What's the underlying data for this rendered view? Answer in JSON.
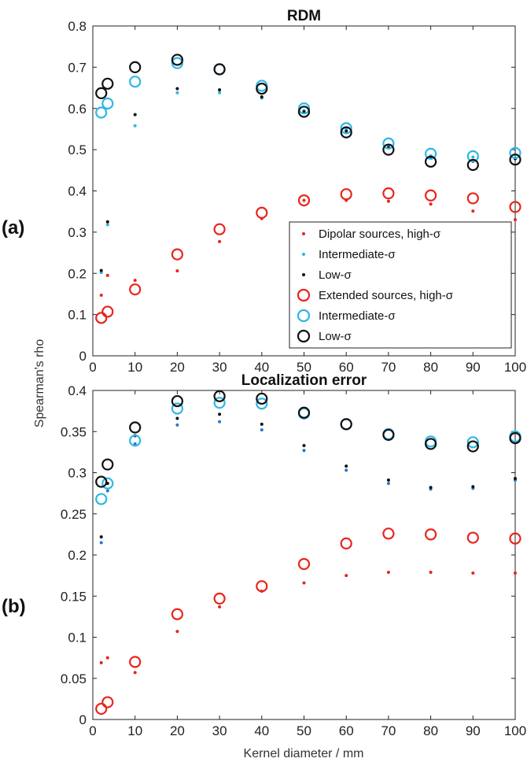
{
  "chart_data": [
    {
      "type": "scatter",
      "panel_label": "(a)",
      "title": "RDM",
      "ylabel": "Spearman's rho",
      "xlabel": "",
      "xlim": [
        0,
        100
      ],
      "ylim": [
        0,
        0.8
      ],
      "xticks": [
        0,
        10,
        20,
        30,
        40,
        50,
        60,
        70,
        80,
        90,
        100
      ],
      "yticks": [
        "0",
        "0.1",
        "0.2",
        "0.3",
        "0.4",
        "0.5",
        "0.6",
        "0.7",
        "0.8"
      ],
      "grid": false,
      "legend_placement": "bottom-right",
      "series": [
        {
          "name": "Dipolar sources, high-σ",
          "marker": "dot",
          "color": "#e8241c",
          "x": [
            2,
            3.5,
            10,
            20,
            30,
            40,
            50,
            60,
            70,
            80,
            90,
            100
          ],
          "y": [
            0.147,
            0.195,
            0.183,
            0.206,
            0.277,
            0.333,
            0.377,
            0.377,
            0.375,
            0.368,
            0.351,
            0.33
          ]
        },
        {
          "name": "Intermediate-σ",
          "marker": "dot",
          "color": "#2db7e6",
          "x": [
            2,
            3.5,
            10,
            20,
            30,
            40,
            50,
            60,
            70,
            80,
            90,
            100
          ],
          "y": [
            0.202,
            0.318,
            0.558,
            0.638,
            0.638,
            0.625,
            0.595,
            0.55,
            0.507,
            0.485,
            0.482,
            0.487
          ]
        },
        {
          "name": "Low-σ",
          "marker": "dot",
          "color": "#111111",
          "x": [
            2,
            3.5,
            10,
            20,
            30,
            40,
            50,
            60,
            70,
            80,
            90,
            100
          ],
          "y": [
            0.207,
            0.325,
            0.585,
            0.648,
            0.645,
            0.628,
            0.592,
            0.545,
            0.505,
            0.48,
            0.472,
            0.478
          ]
        },
        {
          "name": "Extended sources, high-σ",
          "marker": "circle",
          "color": "#e8241c",
          "x": [
            2,
            3.5,
            10,
            20,
            30,
            40,
            50,
            60,
            70,
            80,
            90,
            100
          ],
          "y": [
            0.092,
            0.107,
            0.161,
            0.246,
            0.307,
            0.347,
            0.377,
            0.392,
            0.394,
            0.389,
            0.382,
            0.361
          ]
        },
        {
          "name": "Intermediate-σ",
          "marker": "circle",
          "color": "#2db7e6",
          "x": [
            2,
            3.5,
            10,
            20,
            30,
            40,
            50,
            60,
            70,
            80,
            90,
            100
          ],
          "y": [
            0.59,
            0.612,
            0.665,
            0.71,
            0.695,
            0.655,
            0.6,
            0.552,
            0.515,
            0.49,
            0.484,
            0.492
          ]
        },
        {
          "name": "Low-σ",
          "marker": "circle",
          "color": "#111111",
          "x": [
            2,
            3.5,
            10,
            20,
            30,
            40,
            50,
            60,
            70,
            80,
            90,
            100
          ],
          "y": [
            0.637,
            0.66,
            0.7,
            0.718,
            0.695,
            0.648,
            0.592,
            0.542,
            0.5,
            0.471,
            0.463,
            0.476
          ]
        }
      ]
    },
    {
      "type": "scatter",
      "panel_label": "(b)",
      "title": "Localization error",
      "ylabel": "",
      "xlabel": "Kernel diameter / mm",
      "xlim": [
        0,
        100
      ],
      "ylim": [
        0,
        0.4
      ],
      "xticks": [
        0,
        10,
        20,
        30,
        40,
        50,
        60,
        70,
        80,
        90,
        100
      ],
      "yticks": [
        "0",
        "0.05",
        "0.1",
        "0.15",
        "0.2",
        "0.25",
        "0.3",
        "0.35",
        "0.4"
      ],
      "grid": false,
      "series": [
        {
          "marker": "dot",
          "color": "#e8241c",
          "x": [
            2,
            3.5,
            10,
            20,
            30,
            40,
            50,
            60,
            70,
            80,
            90,
            100
          ],
          "y": [
            0.069,
            0.075,
            0.057,
            0.107,
            0.137,
            0.156,
            0.166,
            0.175,
            0.179,
            0.179,
            0.178,
            0.178
          ]
        },
        {
          "marker": "dot",
          "color": "#2a79c8",
          "x": [
            2,
            3.5,
            10,
            20,
            30,
            40,
            50,
            60,
            70,
            80,
            90,
            100
          ],
          "y": [
            0.215,
            0.278,
            0.335,
            0.358,
            0.362,
            0.352,
            0.327,
            0.303,
            0.287,
            0.28,
            0.281,
            0.291
          ]
        },
        {
          "marker": "dot",
          "color": "#111111",
          "x": [
            2,
            3.5,
            10,
            20,
            30,
            40,
            50,
            60,
            70,
            80,
            90,
            100
          ],
          "y": [
            0.222,
            0.287,
            0.345,
            0.366,
            0.371,
            0.359,
            0.333,
            0.308,
            0.291,
            0.282,
            0.283,
            0.293
          ]
        },
        {
          "marker": "circle",
          "color": "#e8241c",
          "x": [
            2,
            3.5,
            10,
            20,
            30,
            40,
            50,
            60,
            70,
            80,
            90,
            100
          ],
          "y": [
            0.013,
            0.021,
            0.07,
            0.128,
            0.147,
            0.162,
            0.189,
            0.214,
            0.226,
            0.225,
            0.221,
            0.22
          ]
        },
        {
          "marker": "circle",
          "color": "#2db7e6",
          "x": [
            2,
            3.5,
            10,
            20,
            30,
            40,
            50,
            60,
            70,
            80,
            90,
            100
          ],
          "y": [
            0.268,
            0.287,
            0.339,
            0.378,
            0.385,
            0.384,
            0.372,
            0.359,
            0.347,
            0.338,
            0.337,
            0.344
          ]
        },
        {
          "marker": "circle",
          "color": "#111111",
          "x": [
            2,
            3.5,
            10,
            20,
            30,
            40,
            50,
            60,
            70,
            80,
            90,
            100
          ],
          "y": [
            0.289,
            0.31,
            0.355,
            0.387,
            0.393,
            0.39,
            0.373,
            0.359,
            0.346,
            0.335,
            0.332,
            0.342
          ]
        }
      ]
    }
  ]
}
